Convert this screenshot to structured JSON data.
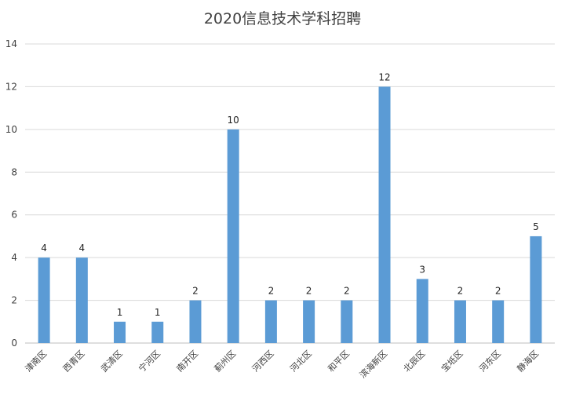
{
  "chart_data": {
    "type": "bar",
    "title": "2020信息技术学科招聘",
    "categories": [
      "津南区",
      "西青区",
      "武清区",
      "宁河区",
      "南开区",
      "蓟州区",
      "河西区",
      "河北区",
      "和平区",
      "滨海新区",
      "北辰区",
      "宝坻区",
      "河东区",
      "静海区"
    ],
    "values": [
      4,
      4,
      1,
      1,
      2,
      10,
      2,
      2,
      2,
      12,
      3,
      2,
      2,
      5
    ],
    "ylim": [
      0,
      14
    ],
    "yticks": [
      0,
      2,
      4,
      6,
      8,
      10,
      12,
      14
    ],
    "grid": true,
    "legend": "none",
    "data_labels": true,
    "bar_color": "#5b9bd5"
  }
}
